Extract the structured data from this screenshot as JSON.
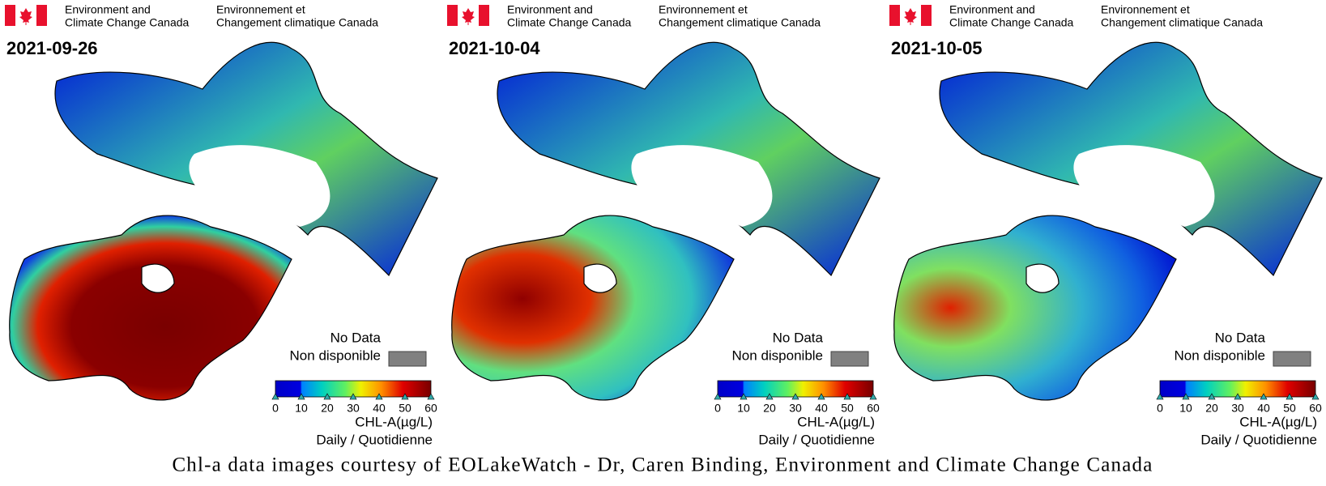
{
  "panels": [
    {
      "header": {
        "en": [
          "Environment and",
          "Climate Change Canada"
        ],
        "fr": [
          "Environnement et",
          "Changement climatique Canada"
        ]
      },
      "date": "2021-09-26",
      "legend": {
        "no_data": "No Data",
        "non_disponible": "Non disponible",
        "ticks": [
          0,
          10,
          20,
          30,
          40,
          50,
          60
        ],
        "unit": "CHL-A(µg/L)",
        "period": "Daily / Quotidienne"
      }
    },
    {
      "header": {
        "en": [
          "Environment and",
          "Climate Change Canada"
        ],
        "fr": [
          "Environnement et",
          "Changement climatique Canada"
        ]
      },
      "date": "2021-10-04",
      "legend": {
        "no_data": "No Data",
        "non_disponible": "Non disponible",
        "ticks": [
          0,
          10,
          20,
          30,
          40,
          50,
          60
        ],
        "unit": "CHL-A(µg/L)",
        "period": "Daily / Quotidienne"
      }
    },
    {
      "header": {
        "en": [
          "Environment and",
          "Climate Change Canada"
        ],
        "fr": [
          "Environnement et",
          "Changement climatique Canada"
        ]
      },
      "date": "2021-10-05",
      "legend": {
        "no_data": "No Data",
        "non_disponible": "Non disponible",
        "ticks": [
          0,
          10,
          20,
          30,
          40,
          50,
          60
        ],
        "unit": "CHL-A(µg/L)",
        "period": "Daily / Quotidienne"
      }
    }
  ],
  "caption": "Chl-a data images courtesy of EOLakeWatch - Dr, Caren Binding, Environment and Climate Change Canada"
}
